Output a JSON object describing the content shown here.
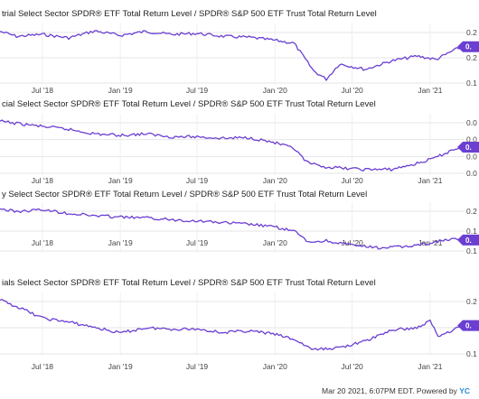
{
  "chart_data": [
    {
      "type": "line",
      "title": "trial Select Sector SPDR® ETF Total Return Level / SPDR® S&P 500 ETF Trust Total Return Level",
      "x_tick_labels": [
        "Jul '18",
        "Jan '19",
        "Jul '19",
        "Jan '20",
        "Jul '20",
        "Jan '21"
      ],
      "y_tick_labels": [
        "0.2",
        "0.2",
        "0.1"
      ],
      "last_value_label": "0.",
      "series": [
        {
          "color": "#6a3fd1",
          "x": [
            "2018-03-23",
            "2018-05-01",
            "2018-07-01",
            "2018-09-01",
            "2018-11-01",
            "2019-01-01",
            "2019-03-01",
            "2019-05-01",
            "2019-07-01",
            "2019-09-01",
            "2019-11-01",
            "2020-01-01",
            "2020-02-15",
            "2020-04-01",
            "2020-05-01",
            "2020-06-01",
            "2020-08-01",
            "2020-10-01",
            "2020-12-01",
            "2021-01-15",
            "2021-03-01",
            "2021-03-19"
          ],
          "values": [
            0.242,
            0.232,
            0.236,
            0.229,
            0.243,
            0.234,
            0.242,
            0.236,
            0.238,
            0.232,
            0.23,
            0.224,
            0.218,
            0.162,
            0.145,
            0.176,
            0.165,
            0.182,
            0.192,
            0.185,
            0.205,
            0.211
          ]
        }
      ]
    },
    {
      "type": "line",
      "title": "cial Select Sector SPDR® ETF Total Return Level / SPDR® S&P 500 ETF Trust Total Return Level",
      "x_tick_labels": [
        "Jul '18",
        "Jan '19",
        "Jul '19",
        "Jan '20",
        "Jul '20",
        "Jan '21"
      ],
      "y_tick_labels": [
        "0.0",
        "0.0",
        "0.0",
        "0.0"
      ],
      "last_value_label": "0.",
      "series": [
        {
          "color": "#6a3fd1",
          "x": [
            "2018-03-23",
            "2018-05-01",
            "2018-07-01",
            "2018-09-01",
            "2018-11-01",
            "2019-01-01",
            "2019-03-01",
            "2019-05-01",
            "2019-07-01",
            "2019-09-01",
            "2019-11-01",
            "2020-01-01",
            "2020-02-15",
            "2020-03-15",
            "2020-04-15",
            "2020-06-01",
            "2020-08-01",
            "2020-10-01",
            "2020-12-01",
            "2021-01-15",
            "2021-03-01",
            "2021-03-19"
          ],
          "values": [
            0.0885,
            0.087,
            0.085,
            0.083,
            0.08,
            0.079,
            0.08,
            0.078,
            0.078,
            0.077,
            0.0775,
            0.074,
            0.07,
            0.061,
            0.058,
            0.057,
            0.056,
            0.056,
            0.06,
            0.064,
            0.07,
            0.071
          ]
        }
      ]
    },
    {
      "type": "line",
      "title": "y Select Sector SPDR® ETF Total Return Level / SPDR® S&P 500 ETF Trust Total Return Level",
      "x_tick_labels": [
        "Jul '18",
        "Jan '19",
        "Jul '19",
        "Jan '20",
        "Jul '20",
        "Jan '21"
      ],
      "y_tick_labels": [
        "0.2",
        "0.1",
        "0.1"
      ],
      "last_value_label": "0.",
      "series": [
        {
          "color": "#6a3fd1",
          "x": [
            "2018-03-23",
            "2018-05-01",
            "2018-07-01",
            "2018-09-01",
            "2018-11-01",
            "2019-01-01",
            "2019-03-01",
            "2019-05-01",
            "2019-07-01",
            "2019-09-01",
            "2019-11-01",
            "2020-01-01",
            "2020-02-15",
            "2020-03-20",
            "2020-05-01",
            "2020-07-01",
            "2020-09-01",
            "2020-11-01",
            "2021-01-01",
            "2021-02-01",
            "2021-03-01",
            "2021-03-19"
          ],
          "values": [
            0.21,
            0.203,
            0.208,
            0.198,
            0.192,
            0.188,
            0.186,
            0.181,
            0.178,
            0.173,
            0.169,
            0.161,
            0.15,
            0.12,
            0.124,
            0.112,
            0.105,
            0.108,
            0.118,
            0.125,
            0.128,
            0.126
          ]
        }
      ]
    },
    {
      "type": "line",
      "title": "ials Select Sector SPDR® ETF Total Return Level / SPDR® S&P 500 ETF Trust Total Return Level",
      "x_tick_labels": [
        "Jul '18",
        "Jan '19",
        "Jul '19",
        "Jan '20",
        "Jul '20",
        "Jan '21"
      ],
      "y_tick_labels": [
        "0.2",
        "0.1",
        "0.1"
      ],
      "last_value_label": "0.",
      "series": [
        {
          "color": "#6a3fd1",
          "x": [
            "2018-03-23",
            "2018-05-01",
            "2018-07-01",
            "2018-09-01",
            "2018-11-01",
            "2019-01-01",
            "2019-03-01",
            "2019-05-01",
            "2019-07-01",
            "2019-09-01",
            "2019-11-01",
            "2020-01-01",
            "2020-02-15",
            "2020-04-01",
            "2020-06-01",
            "2020-08-01",
            "2020-10-01",
            "2020-12-01",
            "2021-01-01",
            "2021-01-20",
            "2021-03-01",
            "2021-03-19"
          ],
          "values": [
            0.226,
            0.215,
            0.195,
            0.188,
            0.179,
            0.169,
            0.178,
            0.176,
            0.176,
            0.17,
            0.173,
            0.167,
            0.158,
            0.14,
            0.144,
            0.155,
            0.174,
            0.178,
            0.19,
            0.164,
            0.176,
            0.182
          ]
        }
      ]
    }
  ],
  "footer": {
    "text": "Mar 20 2021, 6:07PM EDT. Powered by",
    "brand": "YC"
  }
}
